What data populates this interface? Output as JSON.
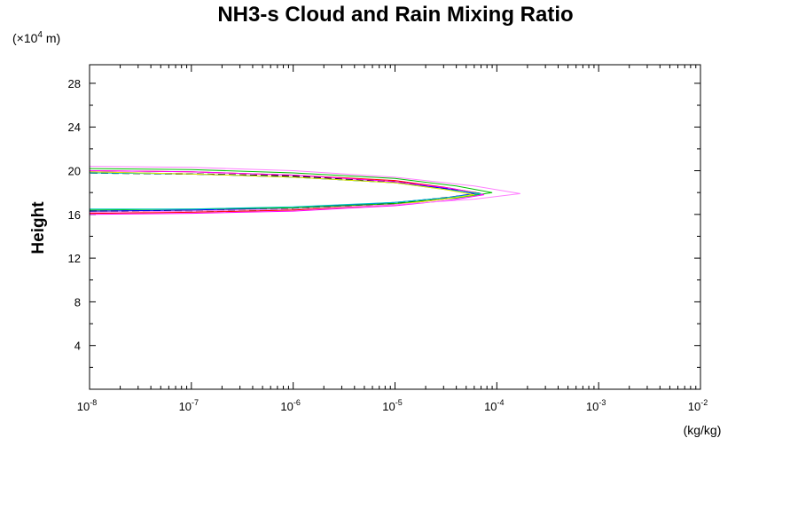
{
  "chart_data": {
    "type": "line",
    "title": "NH3-s Cloud and Rain Mixing Ratio",
    "ylabel": "Height",
    "y_unit": {
      "prefix": "(×10",
      "exp": "4",
      "suffix": " m)"
    },
    "xlabel": "(kg/kg)",
    "x_scale": "log",
    "xlim": [
      1e-08,
      0.01
    ],
    "ylim": [
      0,
      29.7
    ],
    "y_ticks": [
      4,
      8,
      12,
      16,
      20,
      24,
      28
    ],
    "y_tick_labels": [
      "4",
      "8",
      "12",
      "16",
      "20",
      "24",
      "28"
    ],
    "y_minor_step": 2,
    "x_ticks": [
      {
        "value": 1e-08,
        "base": "10",
        "exp": "-8"
      },
      {
        "value": 1e-07,
        "base": "10",
        "exp": "-7"
      },
      {
        "value": 1e-06,
        "base": "10",
        "exp": "-6"
      },
      {
        "value": 1e-05,
        "base": "10",
        "exp": "-5"
      },
      {
        "value": 0.0001,
        "base": "10",
        "exp": "-4"
      },
      {
        "value": 0.001,
        "base": "10",
        "exp": "-3"
      },
      {
        "value": 0.01,
        "base": "10",
        "exp": "-2"
      }
    ],
    "grid": false,
    "legend": "none",
    "series": [
      {
        "color": "#000000",
        "dash": "8,4",
        "x": [
          1e-08,
          1e-07,
          1e-06,
          1e-05,
          3e-05,
          7e-05,
          3e-05,
          1e-05,
          1e-06,
          1e-07,
          1e-08
        ],
        "y": [
          16.3,
          16.3,
          16.5,
          17.0,
          17.5,
          17.9,
          18.4,
          19.0,
          19.5,
          19.7,
          19.8
        ]
      },
      {
        "color": "#ff0000",
        "dash": "",
        "x": [
          1e-08,
          1e-07,
          1e-06,
          1e-05,
          3e-05,
          7e-05,
          3e-05,
          1e-05,
          1e-06,
          1e-07,
          1e-08
        ],
        "y": [
          16.1,
          16.2,
          16.4,
          16.9,
          17.4,
          17.9,
          18.5,
          19.1,
          19.6,
          19.9,
          20.0
        ]
      },
      {
        "color": "#0000ff",
        "dash": "",
        "x": [
          1e-08,
          1e-07,
          1e-06,
          1e-05,
          3e-05,
          6e-05,
          3e-05,
          1e-05,
          1e-06,
          1e-07,
          1e-08
        ],
        "y": [
          16.3,
          16.4,
          16.6,
          17.1,
          17.5,
          17.9,
          18.4,
          18.9,
          19.4,
          19.7,
          19.9
        ]
      },
      {
        "color": "#00c000",
        "dash": "",
        "x": [
          1e-08,
          1e-07,
          1e-06,
          1e-05,
          4e-05,
          9e-05,
          4e-05,
          1e-05,
          1e-06,
          1e-07,
          1e-08
        ],
        "y": [
          16.4,
          16.5,
          16.6,
          17.0,
          17.5,
          18.0,
          18.6,
          19.3,
          19.8,
          20.1,
          20.2
        ]
      },
      {
        "color": "#ff00ff",
        "dash": "",
        "x": [
          1e-08,
          1e-07,
          1e-06,
          1e-05,
          3.5e-05,
          7.5e-05,
          3.5e-05,
          1e-05,
          1e-06,
          1e-07,
          1e-08
        ],
        "y": [
          16.0,
          16.1,
          16.3,
          16.8,
          17.3,
          17.8,
          18.4,
          19.0,
          19.6,
          19.9,
          20.0
        ]
      },
      {
        "color": "#00c8c8",
        "dash": "",
        "x": [
          1e-08,
          1e-07,
          1e-06,
          1e-05,
          3e-05,
          7e-05,
          3e-05,
          1e-05,
          1e-06,
          1e-07,
          1e-08
        ],
        "y": [
          16.5,
          16.5,
          16.7,
          17.1,
          17.5,
          17.9,
          18.3,
          18.9,
          19.4,
          19.7,
          19.8
        ]
      },
      {
        "color": "#e8e800",
        "dash": "",
        "x": [
          1e-08,
          1e-07,
          1e-06,
          1e-05,
          3e-05,
          6e-05,
          3e-05,
          1e-05,
          1e-06,
          1e-07,
          1e-08
        ],
        "y": [
          16.2,
          16.3,
          16.5,
          16.9,
          17.4,
          17.8,
          18.3,
          18.9,
          19.4,
          19.7,
          19.9
        ]
      },
      {
        "color": "#ff80ff",
        "dash": "",
        "x": [
          1e-08,
          1e-07,
          1e-06,
          1e-05,
          6e-05,
          0.00017,
          6e-05,
          1e-05,
          1e-06,
          1e-07,
          1e-08
        ],
        "y": [
          16.2,
          16.3,
          16.5,
          16.9,
          17.4,
          17.9,
          18.6,
          19.4,
          20.0,
          20.3,
          20.4
        ]
      }
    ]
  }
}
